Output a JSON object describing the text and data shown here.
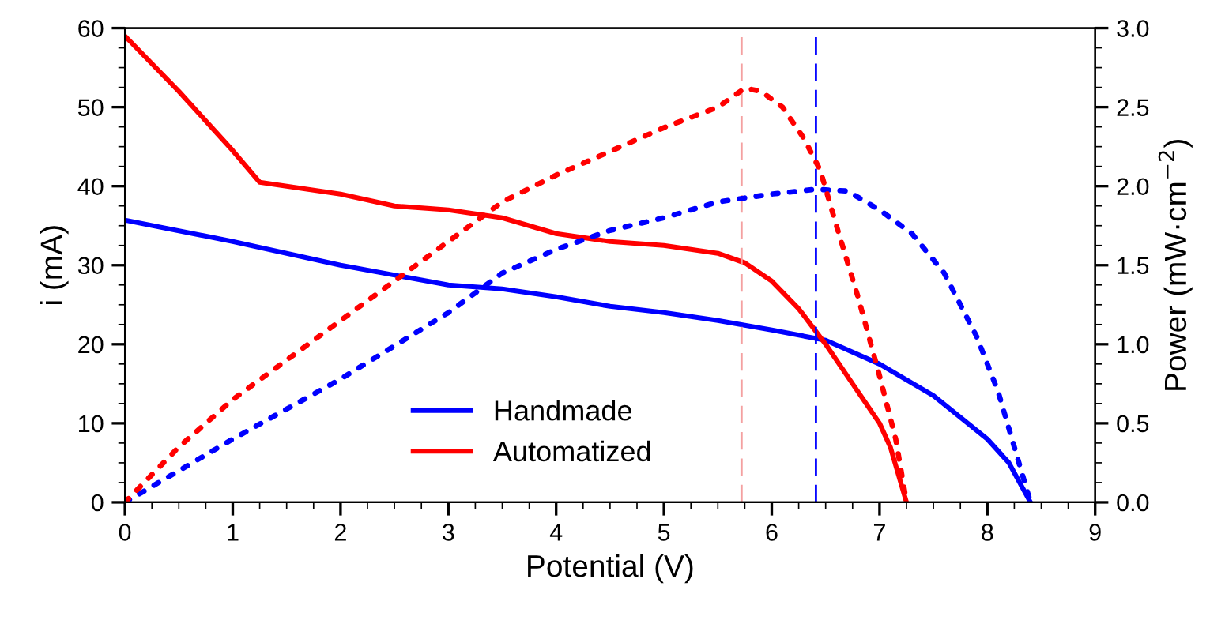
{
  "chart_data": {
    "type": "line",
    "xlabel": "Potential (V)",
    "ylabel": "i (mA)",
    "y2label": "Power (mW·cm$^{−2}$)",
    "xlim": [
      0,
      9
    ],
    "xticks": [
      0,
      1,
      2,
      3,
      4,
      5,
      6,
      7,
      8,
      9
    ],
    "ylim": [
      0,
      60
    ],
    "yticks": [
      0,
      10,
      20,
      30,
      40,
      50,
      60
    ],
    "y2lim": [
      0,
      3
    ],
    "y2ticks": [
      {
        "value": 0,
        "label": "0.0"
      },
      {
        "value": 0.5,
        "label": "0.5"
      },
      {
        "value": 1,
        "label": "1.0"
      },
      {
        "value": 1.5,
        "label": "1.5"
      },
      {
        "value": 2,
        "label": "2.0"
      },
      {
        "value": 2.5,
        "label": "2.5"
      },
      {
        "value": 3,
        "label": "3.0"
      }
    ],
    "grid": false,
    "legend": "bottom",
    "marker": "none",
    "series": [
      {
        "name": "Handmade",
        "color": "#0000ff",
        "line_style": "solid",
        "x": [
          0,
          1,
          2,
          3,
          3.5,
          4,
          4.5,
          5,
          5.5,
          6,
          6.5,
          7,
          7.5,
          8,
          8.2,
          8.4
        ],
        "values": [
          35.7,
          33,
          30,
          27.5,
          27,
          26,
          24.8,
          24,
          23,
          21.8,
          20.5,
          17.5,
          13.5,
          8,
          5,
          0
        ]
      },
      {
        "name": "Automatized",
        "color": "#ff0000",
        "line_style": "solid",
        "x": [
          0,
          0.5,
          1,
          1.25,
          1.5,
          2,
          2.5,
          3,
          3.5,
          4,
          4.5,
          5,
          5.5,
          5.75,
          6,
          6.25,
          6.5,
          6.75,
          7,
          7.1,
          7.25
        ],
        "values": [
          59,
          52,
          44.5,
          40.5,
          40,
          39,
          37.5,
          37,
          36,
          34,
          33,
          32.5,
          31.5,
          30.3,
          28,
          24.5,
          20,
          15,
          10,
          7,
          0
        ]
      },
      {
        "color": "#0000ff",
        "axis": "y2",
        "line_style": "dotted",
        "x": [
          0,
          1,
          2,
          3,
          3.5,
          4,
          4.5,
          5,
          5.5,
          6,
          6.4,
          6.7,
          7,
          7.3,
          7.6,
          7.9,
          8.1,
          8.4
        ],
        "values": [
          0,
          0.4,
          0.78,
          1.2,
          1.45,
          1.6,
          1.72,
          1.8,
          1.9,
          1.95,
          1.98,
          1.97,
          1.85,
          1.7,
          1.45,
          1.05,
          0.7,
          0
        ]
      },
      {
        "color": "#ff0000",
        "axis": "y2",
        "line_style": "dotted",
        "x": [
          0,
          0.5,
          1,
          1.5,
          2,
          2.5,
          3,
          3.5,
          4,
          4.5,
          5,
          5.5,
          5.75,
          5.9,
          6.1,
          6.3,
          6.45,
          6.6,
          6.8,
          7,
          7.15,
          7.25
        ],
        "values": [
          0,
          0.35,
          0.65,
          0.9,
          1.15,
          1.4,
          1.65,
          1.9,
          2.07,
          2.22,
          2.37,
          2.5,
          2.62,
          2.6,
          2.5,
          2.3,
          2.1,
          1.75,
          1.3,
          0.8,
          0.4,
          0
        ]
      }
    ],
    "ref_lines": [
      {
        "axis": "x",
        "value": 5.72,
        "color": "#f4a0a0",
        "line_style": "dashed"
      },
      {
        "axis": "x",
        "value": 6.41,
        "color": "#0000ff",
        "line_style": "dashed"
      }
    ]
  }
}
